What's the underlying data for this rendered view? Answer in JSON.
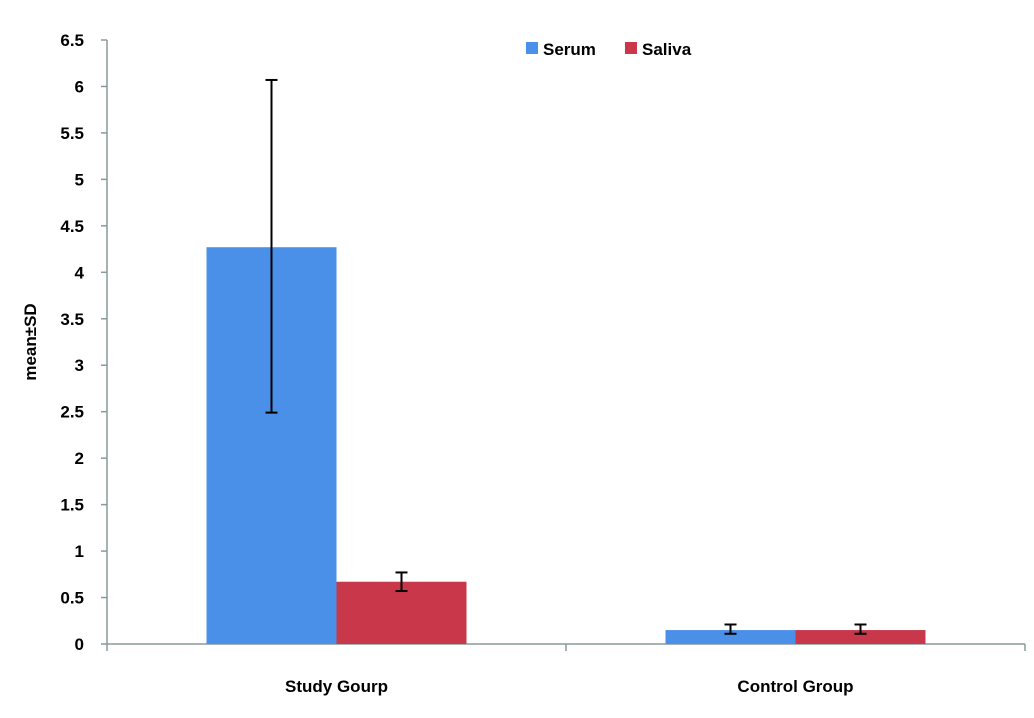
{
  "chart_data": {
    "type": "bar",
    "title": "",
    "xlabel": "",
    "ylabel": "mean±SD",
    "ylim": [
      0,
      6.5
    ],
    "yticks": [
      "0",
      "0.5",
      "1",
      "1.5",
      "2",
      "2.5",
      "3",
      "3.5",
      "4",
      "4.5",
      "5",
      "5.5",
      "6",
      "6.5"
    ],
    "categories": [
      "Study Gourp",
      "Control Group"
    ],
    "series": [
      {
        "name": "Serum",
        "color": "#4a8fe8",
        "values": [
          4.27,
          0.15
        ],
        "error_low": [
          2.49,
          0.11
        ],
        "error_high": [
          6.07,
          0.21
        ]
      },
      {
        "name": "Saliva",
        "color": "#c8384a",
        "values": [
          0.67,
          0.15
        ],
        "error_low": [
          0.57,
          0.11
        ],
        "error_high": [
          0.77,
          0.21
        ]
      }
    ],
    "grid": false,
    "legend_position": "top-center"
  }
}
